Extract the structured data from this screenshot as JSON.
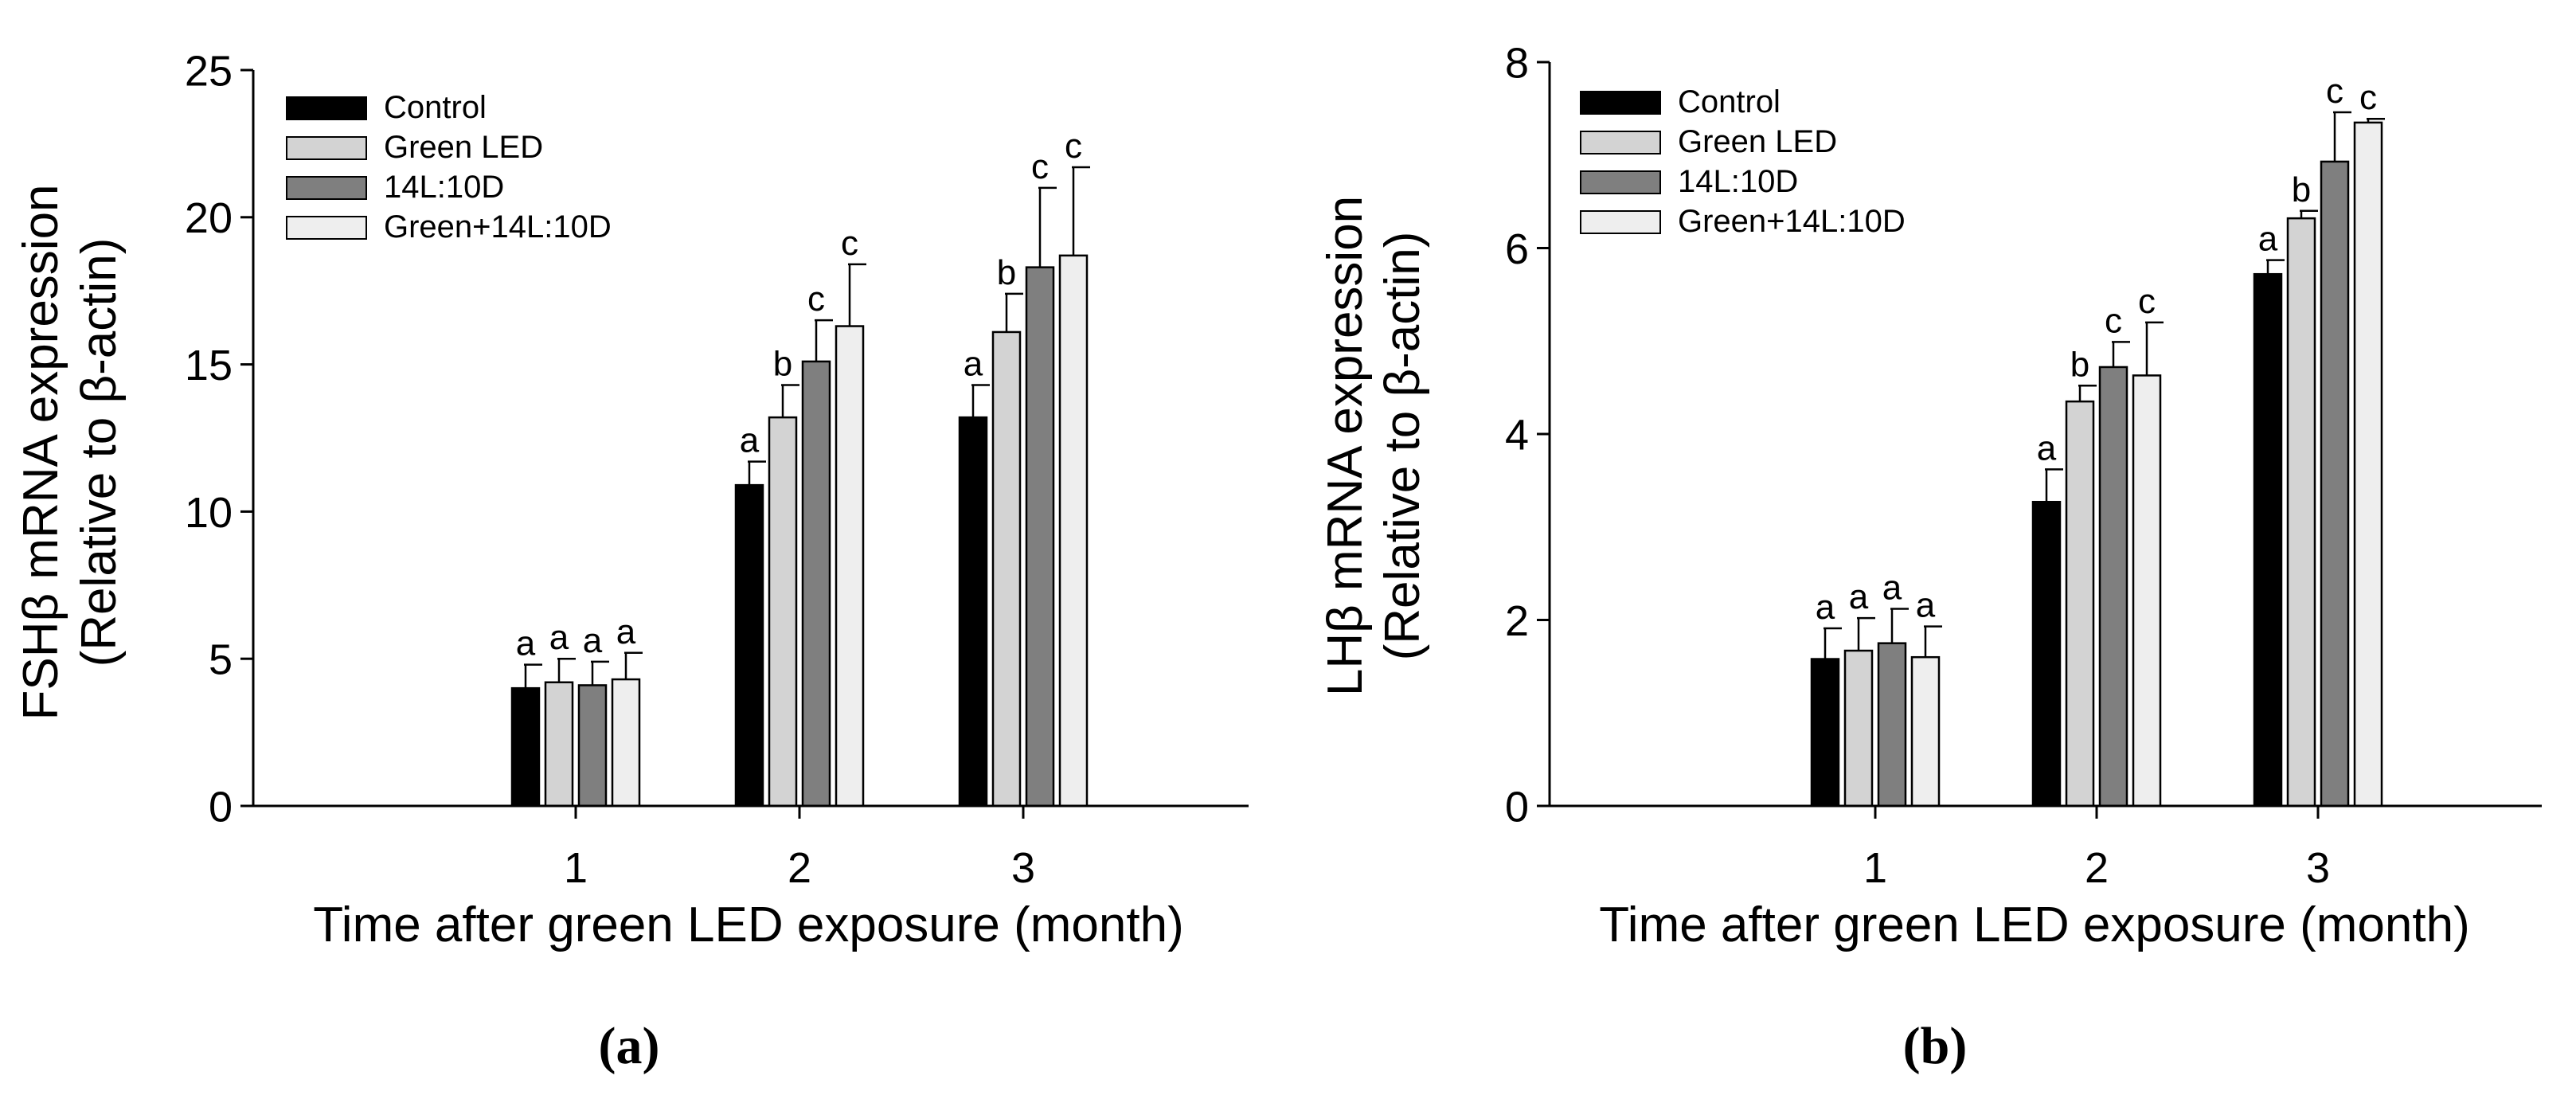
{
  "chart_data": [
    {
      "type": "bar",
      "panel_label": "(a)",
      "title": "",
      "ylabel_line1": "FSHβ mRNA expression",
      "ylabel_line2": "(Relative to β-actin)",
      "xlabel": "Time after green LED exposure (month)",
      "categories": [
        "1",
        "2",
        "3"
      ],
      "ylim": [
        0,
        25
      ],
      "yticks": [
        0,
        5,
        10,
        15,
        20,
        25
      ],
      "ytick_labels": [
        "0",
        "5",
        "10",
        "15",
        "20",
        "25"
      ],
      "grid": false,
      "legend_position": "top-left",
      "series": [
        {
          "name": "Control",
          "color": "#000000",
          "values": [
            4.0,
            10.9,
            13.2
          ],
          "errors": [
            0.8,
            0.8,
            1.1
          ],
          "labels": [
            "a",
            "a",
            "a"
          ]
        },
        {
          "name": "Green LED",
          "color": "#d3d3d3",
          "values": [
            4.2,
            13.2,
            16.1
          ],
          "errors": [
            0.8,
            1.1,
            1.3
          ],
          "labels": [
            "a",
            "b",
            "b"
          ]
        },
        {
          "name": "14L:10D",
          "color": "#7f7f7f",
          "values": [
            4.1,
            15.1,
            18.3
          ],
          "errors": [
            0.8,
            1.4,
            2.7
          ],
          "labels": [
            "a",
            "c",
            "c"
          ]
        },
        {
          "name": "Green+14L:10D",
          "color": "#eeeeee",
          "values": [
            4.3,
            16.3,
            18.7
          ],
          "errors": [
            0.9,
            2.1,
            3.0
          ],
          "labels": [
            "a",
            "c",
            "c"
          ]
        }
      ]
    },
    {
      "type": "bar",
      "panel_label": "(b)",
      "title": "",
      "ylabel_line1": "LHβ mRNA expression",
      "ylabel_line2": "(Relative to β-actin)",
      "xlabel": "Time after green LED exposure (month)",
      "categories": [
        "1",
        "2",
        "3"
      ],
      "ylim": [
        0,
        8
      ],
      "yticks": [
        0,
        2,
        4,
        6,
        8
      ],
      "ytick_labels": [
        "0",
        "2",
        "4",
        "6",
        "8"
      ],
      "grid": false,
      "legend_position": "top-left",
      "series": [
        {
          "name": "Control",
          "color": "#000000",
          "values": [
            1.58,
            3.27,
            5.72
          ],
          "errors": [
            0.33,
            0.35,
            0.15
          ],
          "labels": [
            "a",
            "a",
            "a"
          ]
        },
        {
          "name": "Green LED",
          "color": "#d3d3d3",
          "values": [
            1.67,
            4.35,
            6.32
          ],
          "errors": [
            0.35,
            0.17,
            0.08
          ],
          "labels": [
            "a",
            "b",
            "b"
          ]
        },
        {
          "name": "14L:10D",
          "color": "#7f7f7f",
          "values": [
            1.75,
            4.72,
            6.93
          ],
          "errors": [
            0.37,
            0.27,
            0.53
          ],
          "labels": [
            "a",
            "c",
            "c"
          ]
        },
        {
          "name": "Green+14L:10D",
          "color": "#eeeeee",
          "values": [
            1.6,
            4.63,
            7.35
          ],
          "errors": [
            0.33,
            0.57,
            0.04
          ],
          "labels": [
            "a",
            "c",
            "c"
          ]
        }
      ]
    }
  ]
}
